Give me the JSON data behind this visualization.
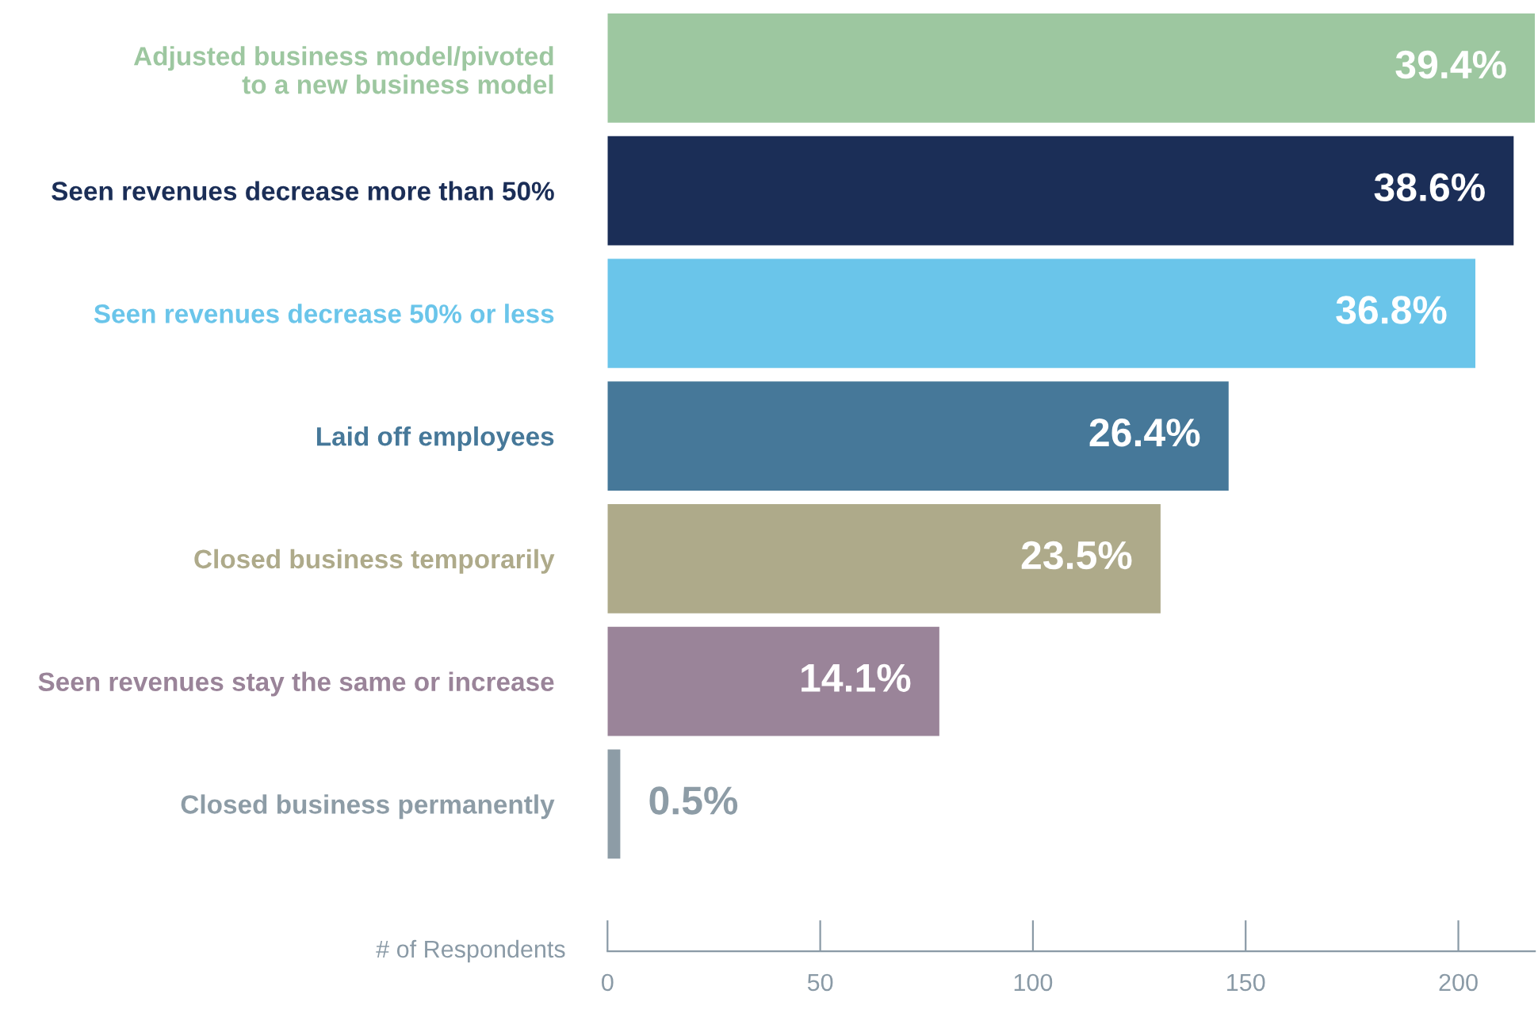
{
  "chart_data": {
    "type": "bar",
    "orientation": "horizontal",
    "categories": [
      "Adjusted business model/pivoted\nto a new business model",
      "Seen revenues decrease more than 50%",
      "Seen revenues decrease 50% or less",
      "Laid off employees",
      "Closed business temporarily",
      "Seen revenues stay the same or increase",
      "Closed business permanently"
    ],
    "values": [
      218,
      213,
      204,
      146,
      130,
      78,
      3
    ],
    "colors": [
      "#9dc7a0",
      "#1b2e57",
      "#6ac5ea",
      "#467899",
      "#aeaa8a",
      "#9a8499",
      "#8d9ca6"
    ],
    "annotations": [
      {
        "text": "39.4%",
        "x": 218,
        "y": "Adjusted business model/pivoted\nto a new business model"
      },
      {
        "text": "38.6%",
        "x": 213,
        "y": "Seen revenues decrease more than 50%"
      },
      {
        "text": "36.8%",
        "x": 204,
        "y": "Seen revenues decrease 50% or less"
      },
      {
        "text": "26.4%",
        "x": 146,
        "y": "Laid off employees"
      },
      {
        "text": "23.5%",
        "x": 130,
        "y": "Closed business temporarily"
      },
      {
        "text": "14.1%",
        "x": 78,
        "y": "Seen revenues stay the same or increase"
      },
      {
        "text": "0.5%",
        "x": 3,
        "y": "Closed business permanently"
      }
    ],
    "xlabel": "# of Respondents",
    "xlim": [
      0,
      218
    ],
    "xticks": [
      0,
      50,
      100,
      150,
      200
    ]
  }
}
